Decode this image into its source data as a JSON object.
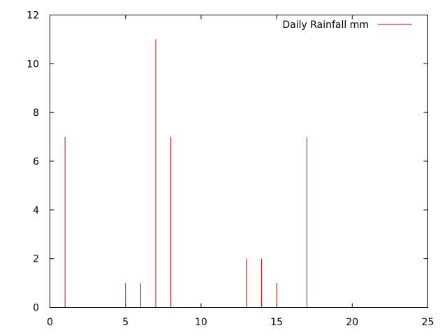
{
  "chart_data": {
    "type": "bar",
    "style": "impulses",
    "series": [
      {
        "name": "Daily Rainfall mm",
        "color": "#cc0000",
        "x": [
          1,
          5,
          6,
          7,
          8,
          13,
          14,
          15,
          17
        ],
        "values": [
          7,
          1,
          1,
          11,
          7,
          2,
          2,
          1,
          7
        ]
      }
    ],
    "xlim": [
      0,
      25
    ],
    "ylim": [
      0,
      12
    ],
    "xticks": [
      0,
      5,
      10,
      15,
      20,
      25
    ],
    "yticks": [
      0,
      2,
      4,
      6,
      8,
      10,
      12
    ],
    "xtick_labels": [
      "0",
      "5",
      "10",
      "15",
      "20",
      "25"
    ],
    "ytick_labels": [
      "0",
      "2",
      "4",
      "6",
      "8",
      "10",
      "12"
    ],
    "title": "",
    "xlabel": "",
    "ylabel": "",
    "grid": false,
    "legend_position": "top-right"
  }
}
